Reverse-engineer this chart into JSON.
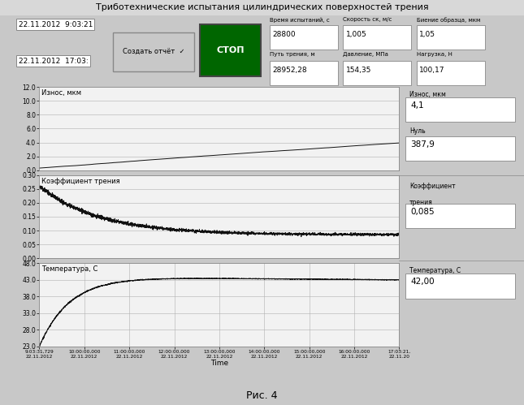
{
  "title": "Триботехнические испытания цилиндрических поверхностей трения",
  "fig_caption": "Рис. 4",
  "header": {
    "date1": "22.11.2012  9:03:21",
    "date2": "22.11.2012  17:03:",
    "btn_create": "Создать отчёт  ✓",
    "btn_stop": "СТОП",
    "col_labels": [
      "Время испытаний, с",
      "Скорость ск, м/с",
      "Биение образца, мкм"
    ],
    "col_values_row1": [
      "28800",
      "1,005",
      "1,05"
    ],
    "col_labels2": [
      "Путь трения, м",
      "Давление, МПа",
      "Нагрузка, Н"
    ],
    "col_values_row2": [
      "28952,28",
      "154,35",
      "100,17"
    ]
  },
  "right_panel": {
    "wear_label": "Износ, мкм",
    "wear_value": "4,1",
    "null_label": "Нуль",
    "null_value": "387,9",
    "friction_label1": "Коэффициент",
    "friction_label2": "трения",
    "friction_value": "0,085",
    "temp_label": "Температура, С",
    "temp_value": "42,00"
  },
  "plot1": {
    "ylabel": "Износ, мкм",
    "ylim": [
      0.0,
      12.0
    ],
    "yticks": [
      0.0,
      2.0,
      4.0,
      6.0,
      8.0,
      10.0,
      12.0
    ]
  },
  "plot2": {
    "ylabel": "Коэффициент трения",
    "ylim": [
      0.0,
      0.3
    ],
    "yticks": [
      0.0,
      0.05,
      0.1,
      0.15,
      0.2,
      0.25,
      0.3
    ]
  },
  "plot3": {
    "ylabel": "Температура, С",
    "ylim": [
      23.0,
      48.0
    ],
    "yticks": [
      23.0,
      28.0,
      33.0,
      38.0,
      43.0,
      48.0
    ]
  },
  "xlabel": "Time",
  "xtick_labels": [
    "9:03:31,729\n22.11.2012",
    "10:00:00,000\n22.11.2012",
    "11:00:00,000\n22.11.2012",
    "12:00:00,000\n22.11.2012",
    "13:00:00,000\n22.11.2012",
    "14:00:00,000\n22.11.2012",
    "15:00:00,000\n22.11.2012",
    "16:00:00,000\n22.11.2012",
    "17:03:21,\n22.11.20"
  ],
  "bg_color": "#c8c8c8",
  "plot_bg": "#f2f2f2",
  "grid_color": "#b0b0b0",
  "line_color": "#111111",
  "stop_color": "#006600"
}
